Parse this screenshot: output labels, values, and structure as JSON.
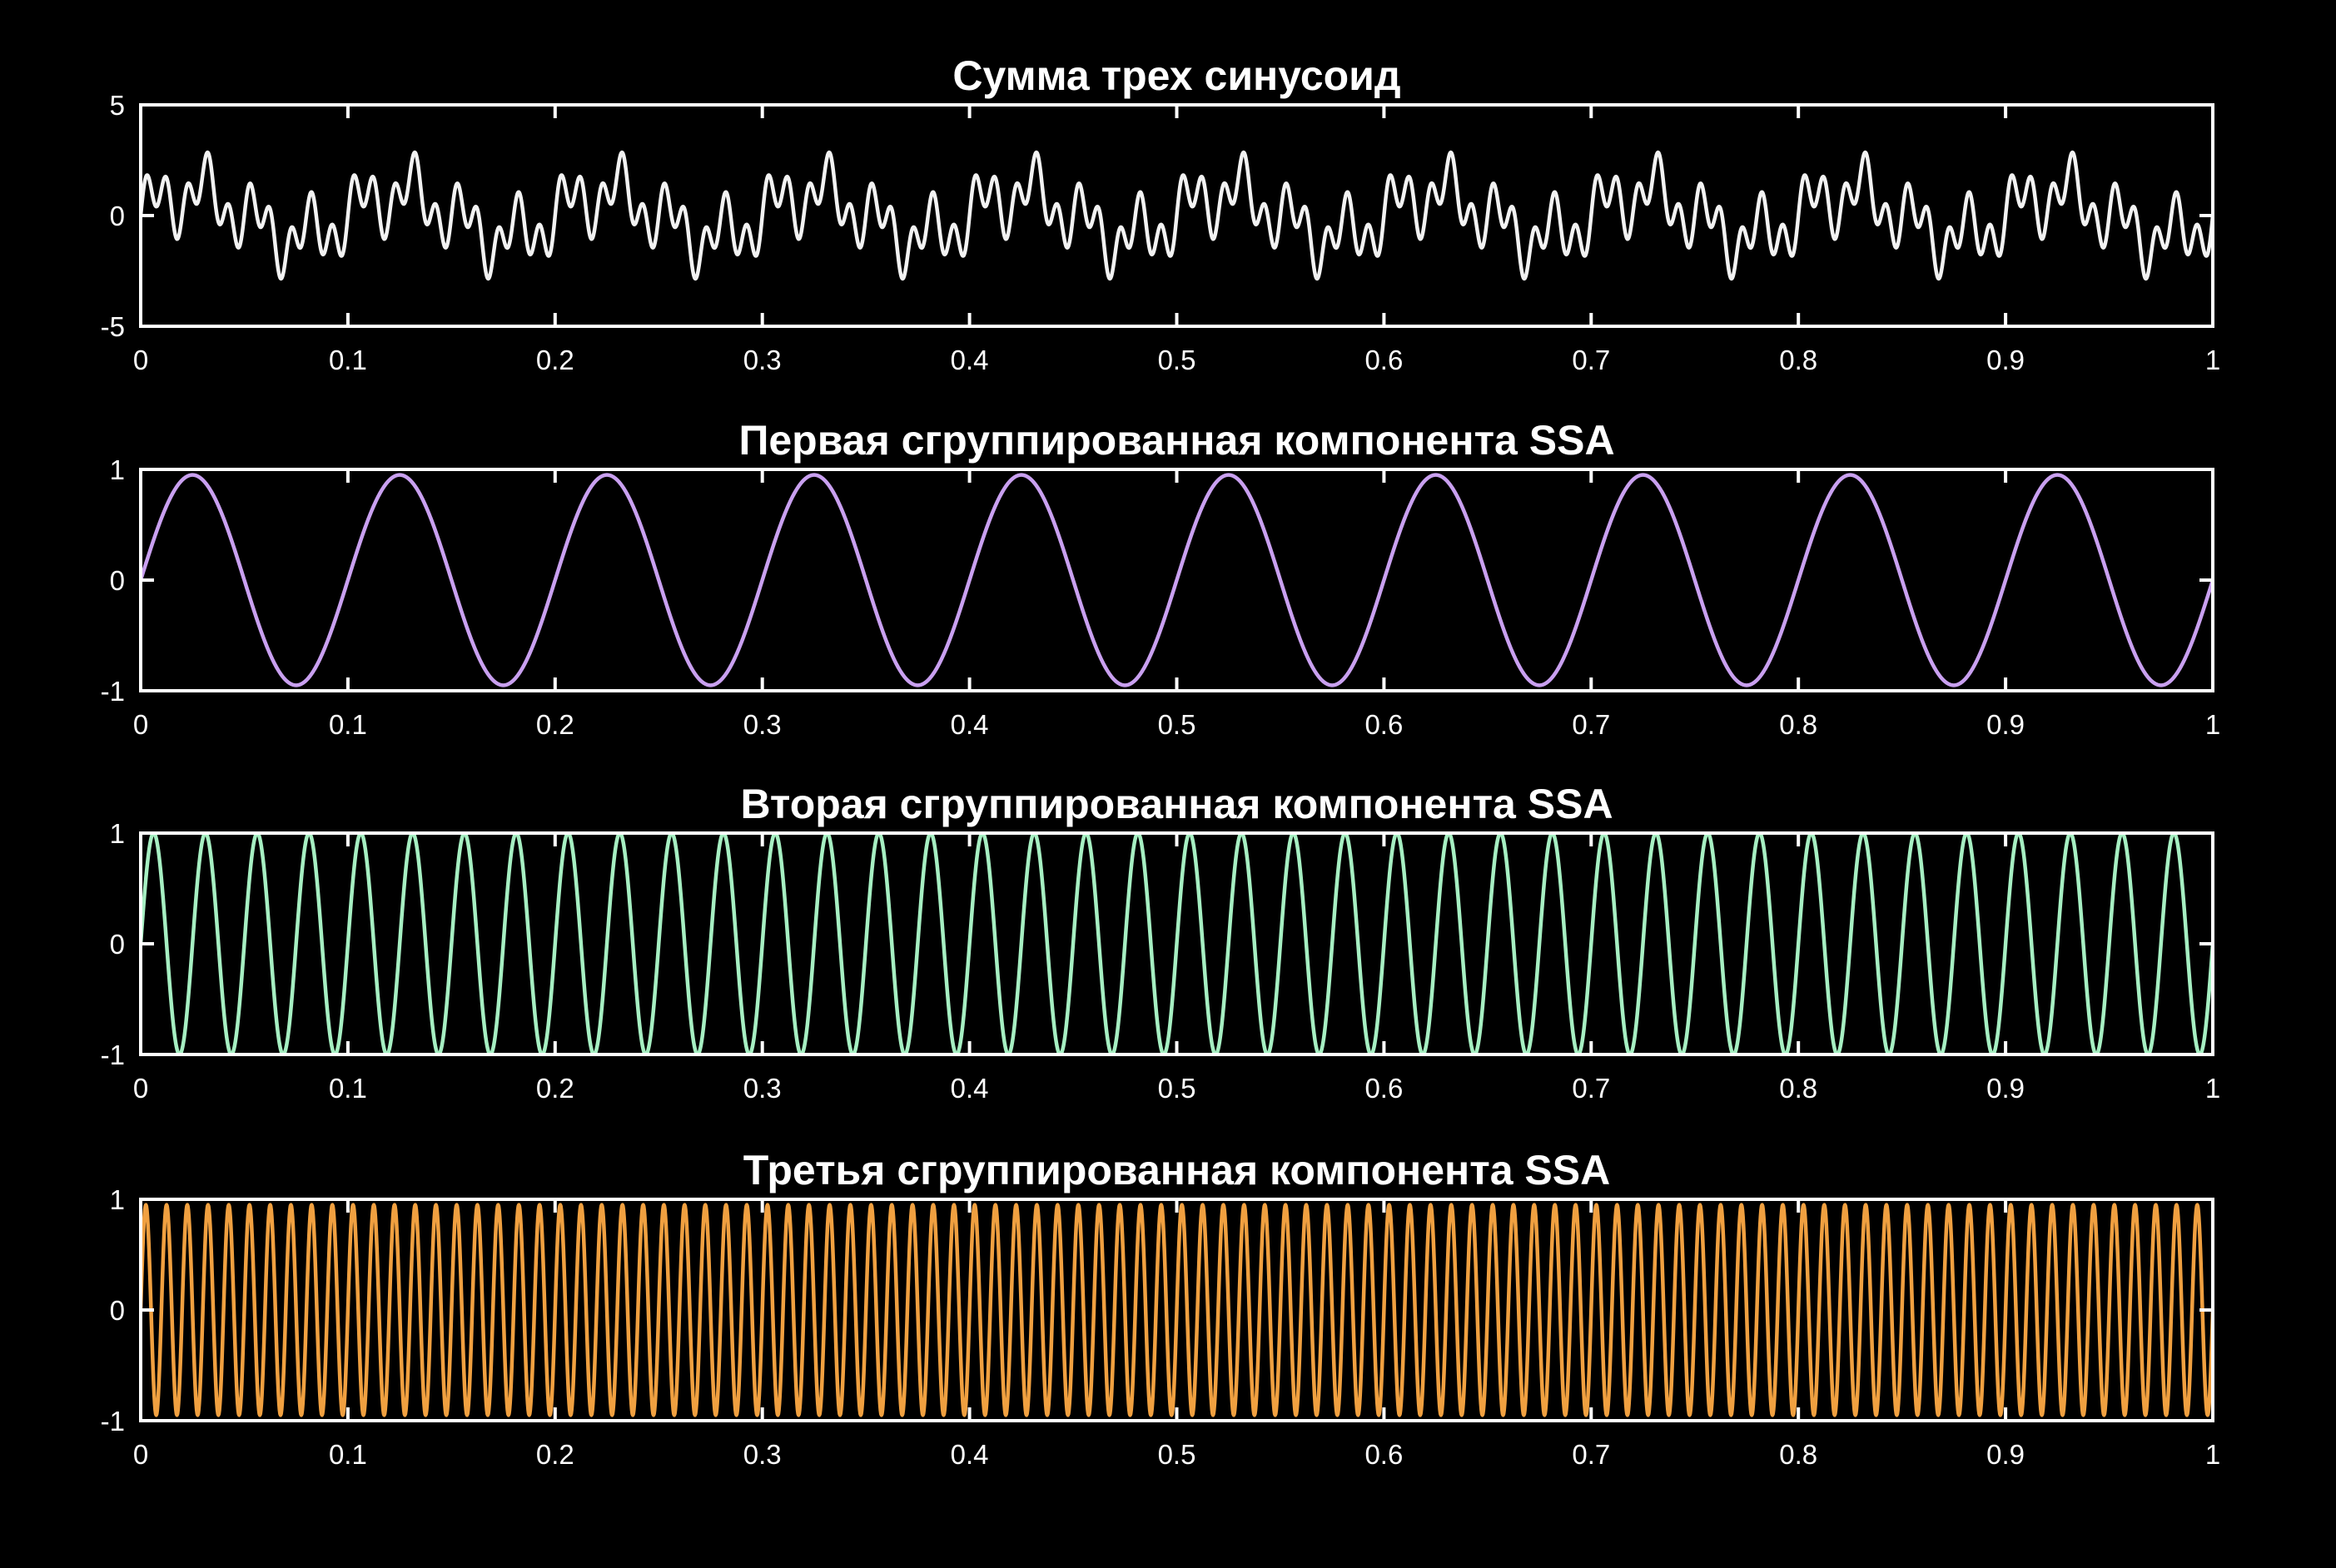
{
  "chart_data": [
    {
      "type": "line",
      "title": "Сумма трех синусоид",
      "xlim": [
        0,
        1
      ],
      "ylim": [
        -5,
        5
      ],
      "x_ticks": [
        "0",
        "0.1",
        "0.2",
        "0.3",
        "0.4",
        "0.5",
        "0.6",
        "0.7",
        "0.8",
        "0.9",
        "1"
      ],
      "y_ticks": [
        "5",
        "0",
        "-5"
      ],
      "color": "#f2f2f2",
      "series": [
        {
          "components": [
            {
              "amplitude": 1,
              "frequency": 10,
              "phase": 0
            },
            {
              "amplitude": 1,
              "frequency": 40,
              "phase": 0
            },
            {
              "amplitude": 1,
              "frequency": 100,
              "phase": 0
            }
          ]
        }
      ]
    },
    {
      "type": "line",
      "title": "Первая сгруппированная компонента SSA",
      "xlim": [
        0,
        1
      ],
      "ylim": [
        -1,
        1
      ],
      "x_ticks": [
        "0",
        "0.1",
        "0.2",
        "0.3",
        "0.4",
        "0.5",
        "0.6",
        "0.7",
        "0.8",
        "0.9",
        "1"
      ],
      "y_ticks": [
        "1",
        "0",
        "-1"
      ],
      "color": "#c9a0f0",
      "series": [
        {
          "components": [
            {
              "amplitude": 0.95,
              "frequency": 10,
              "phase": 0
            }
          ]
        }
      ]
    },
    {
      "type": "line",
      "title": "Вторая сгруппированная компонента SSA",
      "xlim": [
        0,
        1
      ],
      "ylim": [
        -1,
        1
      ],
      "x_ticks": [
        "0",
        "0.1",
        "0.2",
        "0.3",
        "0.4",
        "0.5",
        "0.6",
        "0.7",
        "0.8",
        "0.9",
        "1"
      ],
      "y_ticks": [
        "1",
        "0",
        "-1"
      ],
      "color": "#a6efc2",
      "series": [
        {
          "components": [
            {
              "amplitude": 1,
              "frequency": 40,
              "phase": 0
            }
          ]
        }
      ]
    },
    {
      "type": "line",
      "title": "Третья сгруппированная компонента SSA",
      "xlim": [
        0,
        1
      ],
      "ylim": [
        -1,
        1
      ],
      "x_ticks": [
        "0",
        "0.1",
        "0.2",
        "0.3",
        "0.4",
        "0.5",
        "0.6",
        "0.7",
        "0.8",
        "0.9",
        "1"
      ],
      "y_ticks": [
        "1",
        "0",
        "-1"
      ],
      "color": "#f0a040",
      "series": [
        {
          "components": [
            {
              "amplitude": 0.95,
              "frequency": 100,
              "phase": 0
            }
          ]
        }
      ]
    }
  ]
}
